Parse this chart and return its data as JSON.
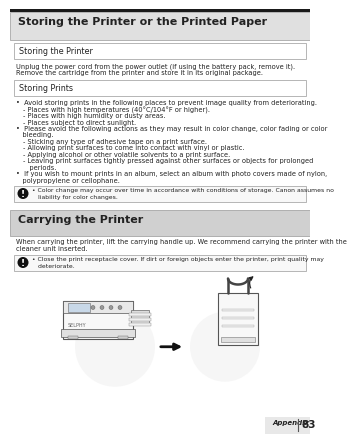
{
  "bg_color": "#ffffff",
  "title1": "Storing the Printer or the Printed Paper",
  "title1_bg": "#e0e0e0",
  "section1_title": "Storing the Printer",
  "section1_text_l1": "Unplug the power cord from the power outlet (if using the battery pack, remove it).",
  "section1_text_l2": "Remove the cartridge from the printer and store it in its original package.",
  "section2_title": "Storing Prints",
  "bullet1": "•  Avoid storing prints in the following places to prevent image quality from deteriorating.",
  "sub_bullets1": [
    "- Places with high temperatures (40°C/104°F or higher).",
    "- Places with high humidity or dusty areas.",
    "- Places subject to direct sunlight."
  ],
  "bullet2_l1": "•  Please avoid the following actions as they may result in color change, color fading or color",
  "bullet2_l2": "   bleeding.",
  "sub_bullets2": [
    "- Sticking any type of adhesive tape on a print surface.",
    "- Allowing print surfaces to come into contact with vinyl or plastic.",
    "- Applying alcohol or other volatile solvents to a print surface.",
    "- Leaving print surfaces tightly pressed against other surfaces or objects for prolonged",
    "   periods."
  ],
  "bullet3_l1": "•  If you wish to mount prints in an album, select an album with photo covers made of nylon,",
  "bullet3_l2": "   polypropylene or cellophane.",
  "note1_l1": "• Color change may occur over time in accordance with conditions of storage. Canon assumes no",
  "note1_l2": "   liability for color changes.",
  "title2": "Carrying the Printer",
  "title2_bg": "#d0d0d0",
  "section3_l1": "When carrying the printer, lift the carrying handle up. We recommend carrying the printer with the",
  "section3_l2": "cleaner unit inserted.",
  "note2_l1": "• Close the print receptacle cover. If dirt or foreign objects enter the printer, print quality may",
  "note2_l2": "   deteriorate.",
  "footer_text": "Appendix",
  "page_num": "83",
  "text_color": "#222222",
  "light_gray": "#e8e8e8",
  "border_color": "#aaaaaa",
  "note_bg": "#f8f8f8",
  "warn_icon_bg": "#111111"
}
